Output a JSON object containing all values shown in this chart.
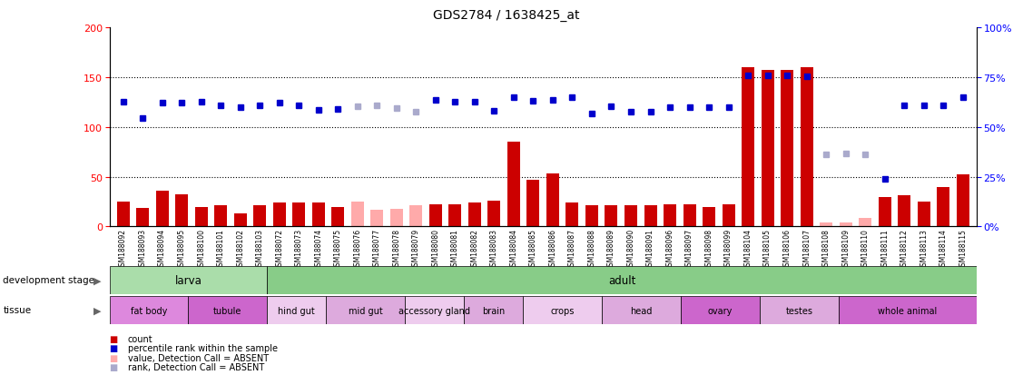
{
  "title": "GDS2784 / 1638425_at",
  "samples": [
    "GSM188092",
    "GSM188093",
    "GSM188094",
    "GSM188095",
    "GSM188100",
    "GSM188101",
    "GSM188102",
    "GSM188103",
    "GSM188072",
    "GSM188073",
    "GSM188074",
    "GSM188075",
    "GSM188076",
    "GSM188077",
    "GSM188078",
    "GSM188079",
    "GSM188080",
    "GSM188081",
    "GSM188082",
    "GSM188083",
    "GSM188084",
    "GSM188085",
    "GSM188086",
    "GSM188087",
    "GSM188088",
    "GSM188089",
    "GSM188090",
    "GSM188091",
    "GSM188096",
    "GSM188097",
    "GSM188098",
    "GSM188099",
    "GSM188104",
    "GSM188105",
    "GSM188106",
    "GSM188107",
    "GSM188108",
    "GSM188109",
    "GSM188110",
    "GSM188111",
    "GSM188112",
    "GSM188113",
    "GSM188114",
    "GSM188115"
  ],
  "count_values": [
    25,
    19,
    36,
    32,
    20,
    21,
    13,
    21,
    24,
    24,
    24,
    20,
    25,
    17,
    18,
    21,
    22,
    22,
    24,
    26,
    85,
    47,
    53,
    24,
    21,
    21,
    21,
    21,
    22,
    22,
    20,
    22,
    160,
    157,
    157,
    160,
    4,
    4,
    9,
    30,
    31,
    25,
    40,
    52
  ],
  "rank_values": [
    125,
    109,
    124,
    124,
    125,
    122,
    120,
    122,
    124,
    122,
    117,
    118,
    121,
    122,
    119,
    115,
    127,
    125,
    125,
    116,
    130,
    126,
    127,
    130,
    113,
    121,
    115,
    115,
    120,
    120,
    120,
    120,
    152,
    152,
    152,
    151,
    72,
    73,
    72,
    48,
    122,
    122,
    122,
    130
  ],
  "absent_indices": [
    12,
    13,
    14,
    15,
    36,
    37,
    38
  ],
  "development_stage": [
    {
      "label": "larva",
      "start": 0,
      "end": 8,
      "color": "#aaddaa"
    },
    {
      "label": "adult",
      "start": 8,
      "end": 44,
      "color": "#88cc88"
    }
  ],
  "tissue_groups": [
    {
      "label": "fat body",
      "start": 0,
      "end": 4,
      "color": "#dd88dd"
    },
    {
      "label": "tubule",
      "start": 4,
      "end": 8,
      "color": "#cc66cc"
    },
    {
      "label": "hind gut",
      "start": 8,
      "end": 11,
      "color": "#eeccee"
    },
    {
      "label": "mid gut",
      "start": 11,
      "end": 15,
      "color": "#ddaadd"
    },
    {
      "label": "accessory gland",
      "start": 15,
      "end": 18,
      "color": "#eeccee"
    },
    {
      "label": "brain",
      "start": 18,
      "end": 21,
      "color": "#ddaadd"
    },
    {
      "label": "crops",
      "start": 21,
      "end": 25,
      "color": "#eeccee"
    },
    {
      "label": "head",
      "start": 25,
      "end": 29,
      "color": "#ddaadd"
    },
    {
      "label": "ovary",
      "start": 29,
      "end": 33,
      "color": "#cc66cc"
    },
    {
      "label": "testes",
      "start": 33,
      "end": 37,
      "color": "#ddaadd"
    },
    {
      "label": "whole animal",
      "start": 37,
      "end": 44,
      "color": "#cc66cc"
    }
  ],
  "ylim_left": [
    0,
    200
  ],
  "ylim_right": [
    0,
    100
  ],
  "left_yticks": [
    0,
    50,
    100,
    150,
    200
  ],
  "right_yticks": [
    0,
    25,
    50,
    75,
    100
  ],
  "bar_color": "#cc0000",
  "bar_absent_color": "#ffaaaa",
  "rank_color": "#0000cc",
  "rank_absent_color": "#aaaacc",
  "tick_area_color": "#c8c8c8"
}
